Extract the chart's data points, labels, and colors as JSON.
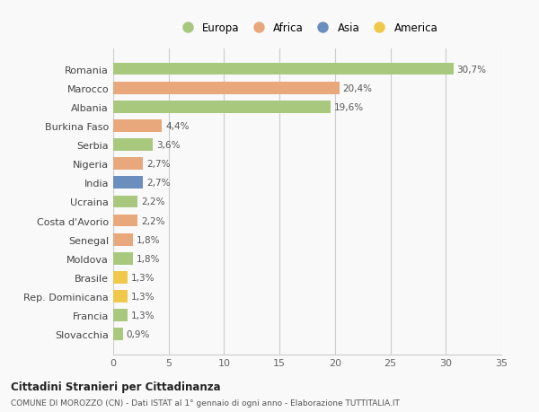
{
  "categories": [
    "Romania",
    "Marocco",
    "Albania",
    "Burkina Faso",
    "Serbia",
    "Nigeria",
    "India",
    "Ucraina",
    "Costa d'Avorio",
    "Senegal",
    "Moldova",
    "Brasile",
    "Rep. Dominicana",
    "Francia",
    "Slovacchia"
  ],
  "values": [
    30.7,
    20.4,
    19.6,
    4.4,
    3.6,
    2.7,
    2.7,
    2.2,
    2.2,
    1.8,
    1.8,
    1.3,
    1.3,
    1.3,
    0.9
  ],
  "labels": [
    "30,7%",
    "20,4%",
    "19,6%",
    "4,4%",
    "3,6%",
    "2,7%",
    "2,7%",
    "2,2%",
    "2,2%",
    "1,8%",
    "1,8%",
    "1,3%",
    "1,3%",
    "1,3%",
    "0,9%"
  ],
  "continents": [
    "Europa",
    "Africa",
    "Europa",
    "Africa",
    "Europa",
    "Africa",
    "Asia",
    "Europa",
    "Africa",
    "Africa",
    "Europa",
    "America",
    "America",
    "Europa",
    "Europa"
  ],
  "colors": {
    "Europa": "#a8c87e",
    "Africa": "#e8a87c",
    "Asia": "#6a8fbf",
    "America": "#f0c84a"
  },
  "legend_order": [
    "Europa",
    "Africa",
    "Asia",
    "America"
  ],
  "xlim": [
    0,
    35
  ],
  "xticks": [
    0,
    5,
    10,
    15,
    20,
    25,
    30,
    35
  ],
  "title": "Cittadini Stranieri per Cittadinanza",
  "subtitle": "COMUNE DI MOROZZO (CN) - Dati ISTAT al 1° gennaio di ogni anno - Elaborazione TUTTITALIA.IT",
  "bg_color": "#f9f9f9",
  "grid_color": "#cccccc"
}
